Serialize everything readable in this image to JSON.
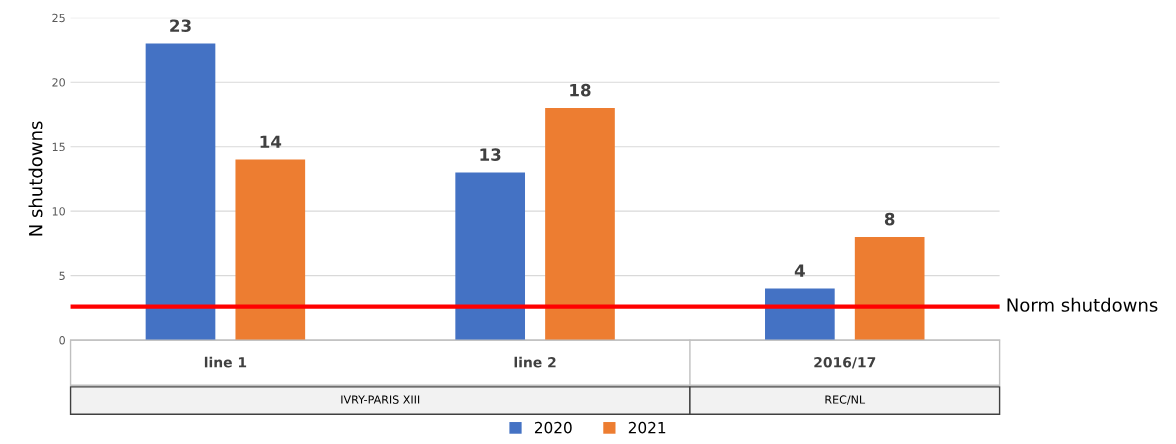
{
  "chart_data": {
    "type": "bar",
    "ylabel": "N shutdowns",
    "categories": [
      "line 1",
      "line 2",
      "2016/17"
    ],
    "series": [
      {
        "name": "2020",
        "color": "#4472c4",
        "values": [
          23,
          13,
          4
        ]
      },
      {
        "name": "2021",
        "color": "#ed7d31",
        "values": [
          14,
          18,
          8
        ]
      }
    ],
    "ylim": [
      0,
      25
    ],
    "yticks": [
      0,
      5,
      10,
      15,
      20,
      25
    ],
    "grid": "y",
    "legend": "bottom",
    "data_labels": true,
    "ref_lines": [
      {
        "axis": "y",
        "value": 2.6,
        "label": "Norm shutdowns",
        "color": "#ff0000",
        "line_style": "solid"
      }
    ],
    "annotations": [
      "IVRY-PARIS XIII",
      "REC/NL"
    ]
  }
}
